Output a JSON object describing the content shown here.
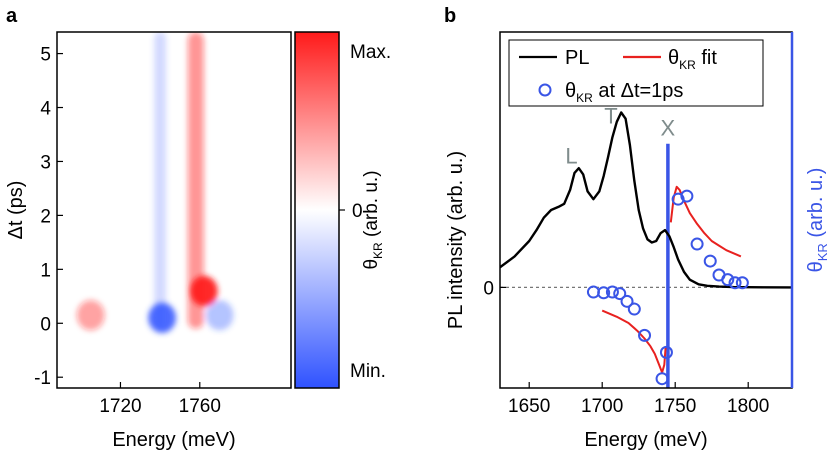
{
  "chart_data": [
    {
      "panel": "a",
      "type": "heatmap",
      "xlabel": "Energy (meV)",
      "ylabel": "Δt (ps)",
      "xlim": [
        1688,
        1806
      ],
      "ylim": [
        -1.2,
        5.4
      ],
      "xticks": [
        1720,
        1760
      ],
      "yticks": [
        -1,
        0,
        1,
        2,
        3,
        4,
        5
      ],
      "colorbar": {
        "label_main": "θ",
        "label_sub": "KR",
        "label_suffix": " (arb. u.)",
        "ticks": [
          "Max.",
          "0",
          "Min."
        ],
        "colors": {
          "max": "#ff1a1a",
          "zero": "#ffffff",
          "min": "#2f52ff"
        }
      },
      "features": [
        {
          "kind": "negative-band",
          "energy": 1740,
          "width": 6,
          "from_dt": -0.1,
          "to_dt": 5.4,
          "strength": -0.22
        },
        {
          "kind": "positive-band",
          "energy": 1758,
          "width": 8,
          "from_dt": -0.1,
          "to_dt": 5.4,
          "strength": 0.45
        },
        {
          "kind": "positive-spot",
          "energy": 1762,
          "dt": 0.6,
          "strength": 0.95
        },
        {
          "kind": "negative-spot",
          "energy": 1741,
          "dt": 0.1,
          "strength": -0.85
        },
        {
          "kind": "positive-spot",
          "energy": 1705,
          "dt": 0.15,
          "strength": 0.4
        },
        {
          "kind": "negative-spot",
          "energy": 1770,
          "dt": 0.15,
          "strength": -0.35
        }
      ]
    },
    {
      "panel": "b",
      "type": "line",
      "xlabel": "Energy (meV)",
      "ylabel_left": "PL intensity (arb. u.)",
      "ylabel_right_main": "θ",
      "ylabel_right_sub": "KR",
      "ylabel_right_suffix": " (arb. u.)",
      "xlim": [
        1630,
        1830
      ],
      "ylim": [
        -0.65,
        1.65
      ],
      "xticks": [
        1650,
        1700,
        1750,
        1800
      ],
      "yticks": [
        0
      ],
      "annotations": [
        {
          "text": "L",
          "x": 1679,
          "y": 0.8
        },
        {
          "text": "T",
          "x": 1706,
          "y": 1.06
        },
        {
          "text": "X",
          "x": 1745,
          "y": 0.98
        }
      ],
      "vline": {
        "x": 1745,
        "color": "#3a55e6"
      },
      "legend": {
        "position": "top",
        "entries": [
          {
            "label": "PL",
            "type": "line",
            "color": "#000000"
          },
          {
            "label_main": "θ",
            "label_sub": "KR",
            "label_suffix": " fit",
            "type": "line",
            "color": "#e8211f"
          },
          {
            "label_main": "θ",
            "label_sub": "KR",
            "label_suffix": " at Δt=1ps",
            "type": "marker",
            "color": "#3a55e6"
          }
        ]
      },
      "series": [
        {
          "name": "PL",
          "color": "#000000",
          "x": [
            1630,
            1640,
            1650,
            1655,
            1660,
            1665,
            1670,
            1674,
            1678,
            1681,
            1684,
            1687,
            1690,
            1694,
            1698,
            1701,
            1704,
            1707,
            1710,
            1713,
            1716,
            1719,
            1722,
            1725,
            1728,
            1731,
            1734,
            1737,
            1740,
            1743,
            1746,
            1749,
            1752,
            1756,
            1760,
            1766,
            1772,
            1780,
            1790,
            1800,
            1830
          ],
          "y": [
            0.13,
            0.2,
            0.3,
            0.37,
            0.45,
            0.5,
            0.52,
            0.54,
            0.63,
            0.74,
            0.77,
            0.73,
            0.62,
            0.57,
            0.62,
            0.72,
            0.84,
            0.97,
            1.07,
            1.13,
            1.09,
            0.92,
            0.69,
            0.5,
            0.38,
            0.31,
            0.29,
            0.3,
            0.35,
            0.37,
            0.33,
            0.26,
            0.18,
            0.1,
            0.05,
            0.02,
            0.01,
            0.005,
            0.002,
            0.001,
            0.0
          ]
        },
        {
          "name": "θKR fit (low-energy branch)",
          "color": "#e8211f",
          "x": [
            1700,
            1710,
            1718,
            1724,
            1729,
            1733,
            1736,
            1739,
            1741,
            1742.5,
            1743.5
          ],
          "y": [
            -0.15,
            -0.19,
            -0.23,
            -0.28,
            -0.33,
            -0.38,
            -0.43,
            -0.5,
            -0.55,
            -0.5,
            -0.38
          ]
        },
        {
          "name": "θKR fit (high-energy branch)",
          "color": "#e8211f",
          "x": [
            1747,
            1749,
            1751,
            1753,
            1756,
            1760,
            1765,
            1770,
            1775,
            1780,
            1785,
            1790,
            1795
          ],
          "y": [
            0.42,
            0.58,
            0.65,
            0.63,
            0.56,
            0.48,
            0.41,
            0.35,
            0.3,
            0.27,
            0.24,
            0.22,
            0.2
          ]
        },
        {
          "name": "θKR at Δt=1ps",
          "type": "scatter",
          "color": "#3a55e6",
          "x": [
            1694,
            1701,
            1707,
            1712,
            1717,
            1722,
            1729,
            1741,
            1744,
            1752,
            1758,
            1765,
            1774,
            1780,
            1786,
            1791,
            1796
          ],
          "y": [
            -0.03,
            -0.035,
            -0.03,
            -0.04,
            -0.09,
            -0.14,
            -0.31,
            -0.59,
            -0.42,
            0.57,
            0.59,
            0.28,
            0.17,
            0.08,
            0.05,
            0.03,
            0.03
          ]
        }
      ]
    }
  ]
}
